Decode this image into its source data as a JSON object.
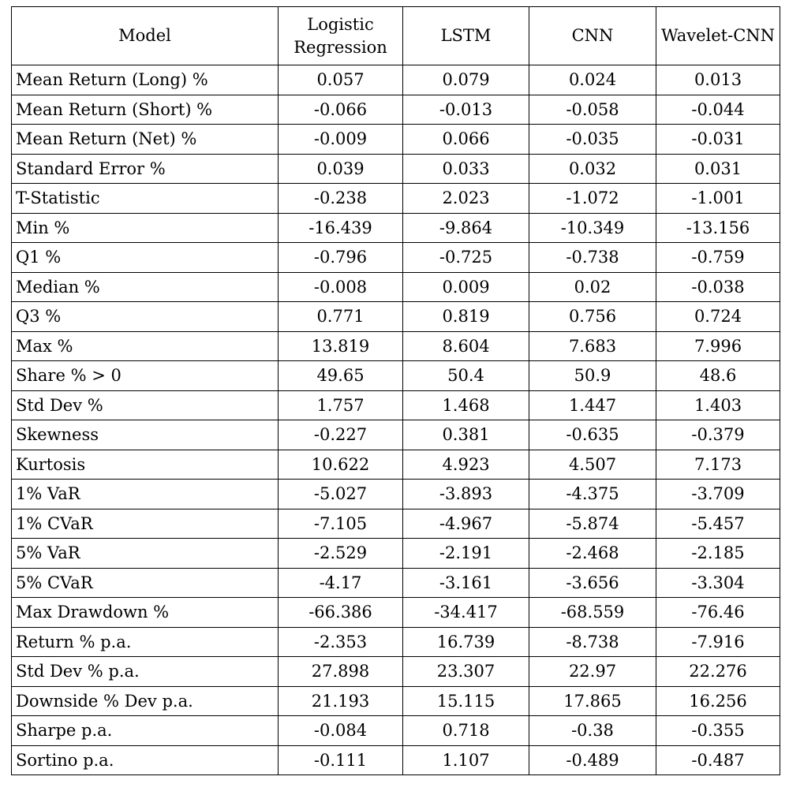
{
  "table": {
    "headers": [
      "Model",
      "Logistic Regression",
      "LSTM",
      "CNN",
      "Wavelet-CNN"
    ],
    "rows": [
      {
        "label": "Mean Return (Long) %",
        "values": [
          "0.057",
          "0.079",
          "0.024",
          "0.013"
        ]
      },
      {
        "label": "Mean Return (Short) %",
        "values": [
          "-0.066",
          "-0.013",
          "-0.058",
          "-0.044"
        ]
      },
      {
        "label": "Mean Return (Net) %",
        "values": [
          "-0.009",
          "0.066",
          "-0.035",
          "-0.031"
        ]
      },
      {
        "label": "Standard Error %",
        "values": [
          "0.039",
          "0.033",
          "0.032",
          "0.031"
        ]
      },
      {
        "label": "T-Statistic",
        "values": [
          "-0.238",
          "2.023",
          "-1.072",
          "-1.001"
        ]
      },
      {
        "label": "Min %",
        "values": [
          "-16.439",
          "-9.864",
          "-10.349",
          "-13.156"
        ]
      },
      {
        "label": "Q1 %",
        "values": [
          "-0.796",
          "-0.725",
          "-0.738",
          "-0.759"
        ]
      },
      {
        "label": "Median %",
        "values": [
          "-0.008",
          "0.009",
          "0.02",
          "-0.038"
        ]
      },
      {
        "label": "Q3 %",
        "values": [
          "0.771",
          "0.819",
          "0.756",
          "0.724"
        ]
      },
      {
        "label": "Max %",
        "values": [
          "13.819",
          "8.604",
          "7.683",
          "7.996"
        ]
      },
      {
        "label": "Share % > 0",
        "values": [
          "49.65",
          "50.4",
          "50.9",
          "48.6"
        ]
      },
      {
        "label": "Std Dev %",
        "values": [
          "1.757",
          "1.468",
          "1.447",
          "1.403"
        ]
      },
      {
        "label": "Skewness",
        "values": [
          "-0.227",
          "0.381",
          "-0.635",
          "-0.379"
        ]
      },
      {
        "label": "Kurtosis",
        "values": [
          "10.622",
          "4.923",
          "4.507",
          "7.173"
        ]
      },
      {
        "label": "1% VaR",
        "values": [
          "-5.027",
          "-3.893",
          "-4.375",
          "-3.709"
        ]
      },
      {
        "label": "1% CVaR",
        "values": [
          "-7.105",
          "-4.967",
          "-5.874",
          "-5.457"
        ]
      },
      {
        "label": "5% VaR",
        "values": [
          "-2.529",
          "-2.191",
          "-2.468",
          "-2.185"
        ]
      },
      {
        "label": "5% CVaR",
        "values": [
          "-4.17",
          "-3.161",
          "-3.656",
          "-3.304"
        ]
      },
      {
        "label": "Max Drawdown %",
        "values": [
          "-66.386",
          "-34.417",
          "-68.559",
          "-76.46"
        ]
      },
      {
        "label": "Return % p.a.",
        "values": [
          "-2.353",
          "16.739",
          "-8.738",
          "-7.916"
        ]
      },
      {
        "label": "Std Dev % p.a.",
        "values": [
          "27.898",
          "23.307",
          "22.97",
          "22.276"
        ]
      },
      {
        "label": "Downside % Dev p.a.",
        "values": [
          "21.193",
          "15.115",
          "17.865",
          "16.256"
        ]
      },
      {
        "label": "Sharpe p.a.",
        "values": [
          "-0.084",
          "0.718",
          "-0.38",
          "-0.355"
        ]
      },
      {
        "label": "Sortino p.a.",
        "values": [
          "-0.111",
          "1.107",
          "-0.489",
          "-0.487"
        ]
      }
    ]
  }
}
